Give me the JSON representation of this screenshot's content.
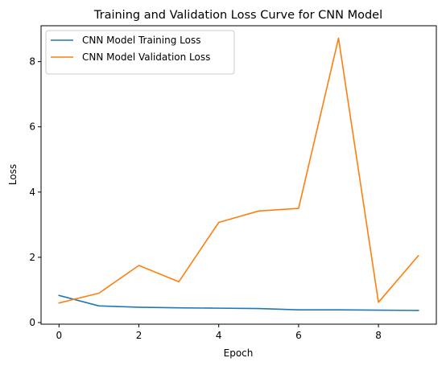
{
  "chart_data": {
    "type": "line",
    "title": "Training and Validation Loss Curve for CNN Model",
    "xlabel": "Epoch",
    "ylabel": "Loss",
    "x": [
      0,
      1,
      2,
      3,
      4,
      5,
      6,
      7,
      8,
      9
    ],
    "xlim": [
      -0.45,
      9.45
    ],
    "ylim": [
      -0.05,
      9.1
    ],
    "xticks": [
      0,
      2,
      4,
      6,
      8
    ],
    "yticks": [
      0,
      2,
      4,
      6,
      8
    ],
    "grid": false,
    "legend_position": "upper-left",
    "series": [
      {
        "name": "CNN Model Training Loss",
        "color": "#1f77b4",
        "values": [
          0.83,
          0.51,
          0.47,
          0.45,
          0.44,
          0.43,
          0.39,
          0.39,
          0.38,
          0.37
        ]
      },
      {
        "name": "CNN Model Validation Loss",
        "color": "#ff7f0e",
        "values": [
          0.6,
          0.9,
          1.75,
          1.25,
          3.07,
          3.42,
          3.5,
          8.72,
          0.62,
          2.05
        ]
      }
    ]
  }
}
